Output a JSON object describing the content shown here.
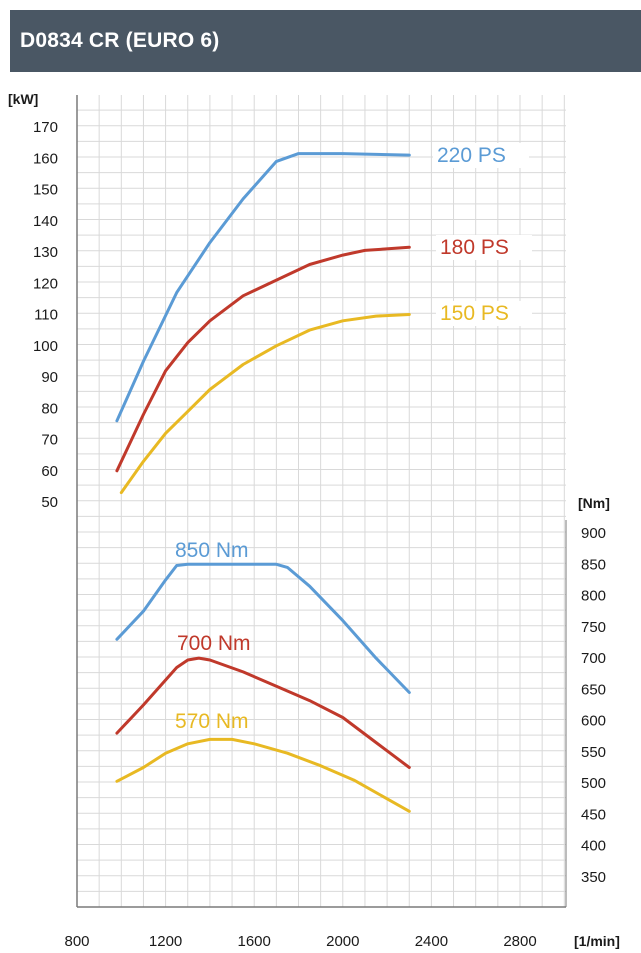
{
  "title": "D0834 CR (EURO 6)",
  "colors": {
    "header_bg": "#4a5764",
    "blue": "#5b9bd5",
    "red": "#c0392b",
    "yellow": "#e8b923",
    "grid": "#d9d9d9"
  },
  "chart_data": {
    "type": "line",
    "x_unit": "[1/min]",
    "x_ticks": [
      800,
      1200,
      1600,
      2000,
      2400,
      2800
    ],
    "x_range": [
      800,
      3000
    ],
    "power_unit": "[kW]",
    "power_ticks": [
      50,
      60,
      70,
      80,
      90,
      100,
      110,
      120,
      130,
      140,
      150,
      160,
      170
    ],
    "power_range": [
      50,
      172
    ],
    "torque_unit": "[Nm]",
    "torque_ticks": [
      350,
      400,
      450,
      500,
      550,
      600,
      650,
      700,
      750,
      800,
      850,
      900
    ],
    "torque_range": [
      300,
      925
    ],
    "power_series": [
      {
        "name": "220 PS",
        "color": "#5b9bd5",
        "points": [
          [
            980,
            76
          ],
          [
            1100,
            95
          ],
          [
            1250,
            117
          ],
          [
            1400,
            133
          ],
          [
            1550,
            147
          ],
          [
            1700,
            159
          ],
          [
            1800,
            161.5
          ],
          [
            2000,
            161.5
          ],
          [
            2300,
            161
          ]
        ]
      },
      {
        "name": "180 PS",
        "color": "#c0392b",
        "points": [
          [
            980,
            60
          ],
          [
            1100,
            78
          ],
          [
            1200,
            92
          ],
          [
            1300,
            101
          ],
          [
            1400,
            108
          ],
          [
            1550,
            116
          ],
          [
            1700,
            121
          ],
          [
            1850,
            126
          ],
          [
            2000,
            129
          ],
          [
            2100,
            130.5
          ],
          [
            2300,
            131.5
          ]
        ]
      },
      {
        "name": "150 PS",
        "color": "#e8b923",
        "points": [
          [
            1000,
            53
          ],
          [
            1100,
            63
          ],
          [
            1200,
            72
          ],
          [
            1300,
            79
          ],
          [
            1400,
            86
          ],
          [
            1550,
            94
          ],
          [
            1700,
            100
          ],
          [
            1850,
            105
          ],
          [
            2000,
            108
          ],
          [
            2150,
            109.5
          ],
          [
            2300,
            110
          ]
        ]
      }
    ],
    "torque_series": [
      {
        "name": "850 Nm",
        "color": "#5b9bd5",
        "points": [
          [
            980,
            730
          ],
          [
            1100,
            775
          ],
          [
            1200,
            825
          ],
          [
            1250,
            848
          ],
          [
            1300,
            850
          ],
          [
            1700,
            850
          ],
          [
            1750,
            845
          ],
          [
            1850,
            815
          ],
          [
            2000,
            760
          ],
          [
            2150,
            700
          ],
          [
            2300,
            645
          ]
        ]
      },
      {
        "name": "700 Nm",
        "color": "#c0392b",
        "points": [
          [
            980,
            580
          ],
          [
            1100,
            625
          ],
          [
            1200,
            665
          ],
          [
            1250,
            685
          ],
          [
            1300,
            697
          ],
          [
            1350,
            700
          ],
          [
            1400,
            697
          ],
          [
            1550,
            678
          ],
          [
            1700,
            655
          ],
          [
            1850,
            632
          ],
          [
            2000,
            605
          ],
          [
            2150,
            565
          ],
          [
            2300,
            525
          ]
        ]
      },
      {
        "name": "570 Nm",
        "color": "#e8b923",
        "points": [
          [
            980,
            503
          ],
          [
            1100,
            525
          ],
          [
            1200,
            548
          ],
          [
            1300,
            563
          ],
          [
            1400,
            570
          ],
          [
            1500,
            570
          ],
          [
            1600,
            563
          ],
          [
            1750,
            548
          ],
          [
            1900,
            528
          ],
          [
            2050,
            505
          ],
          [
            2200,
            475
          ],
          [
            2300,
            455
          ]
        ]
      }
    ]
  }
}
